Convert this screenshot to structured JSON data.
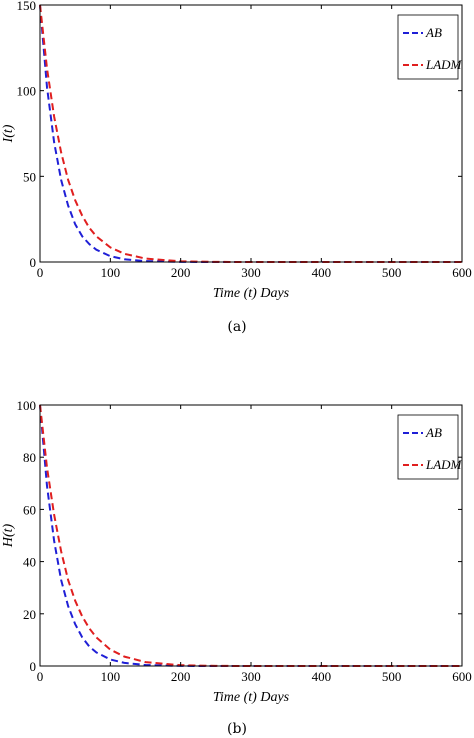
{
  "chart_data": [
    {
      "type": "line",
      "caption": "(a)",
      "xlabel": "Time (t) Days",
      "ylabel": "I(t)",
      "xlim": [
        0,
        600
      ],
      "ylim": [
        0,
        150
      ],
      "xticks": [
        0,
        100,
        200,
        300,
        400,
        500,
        600
      ],
      "yticks": [
        0,
        50,
        100,
        150
      ],
      "grid": false,
      "legend": "top-right",
      "series": [
        {
          "name": "AB",
          "color": "#1f1fd6",
          "x": [
            0,
            10,
            20,
            30,
            40,
            50,
            60,
            70,
            80,
            100,
            120,
            150,
            200,
            250,
            300,
            400,
            500,
            600
          ],
          "y": [
            150,
            102,
            70,
            48,
            33,
            22,
            15,
            10.5,
            7.2,
            3.4,
            1.6,
            0.5,
            0.05,
            0,
            0,
            0,
            0,
            0
          ]
        },
        {
          "name": "LADM",
          "color": "#e01f1f",
          "x": [
            0,
            10,
            20,
            30,
            40,
            50,
            60,
            70,
            80,
            100,
            120,
            150,
            200,
            250,
            300,
            400,
            500,
            600
          ],
          "y": [
            150,
            113,
            85,
            64,
            48,
            36,
            27,
            20,
            15,
            8.5,
            4.8,
            2.0,
            0.4,
            0.05,
            0,
            0,
            0,
            0
          ]
        }
      ]
    },
    {
      "type": "line",
      "caption": "(b)",
      "xlabel": "Time (t) Days",
      "ylabel": "H(t)",
      "xlim": [
        0,
        600
      ],
      "ylim": [
        0,
        100
      ],
      "xticks": [
        0,
        100,
        200,
        300,
        400,
        500,
        600
      ],
      "yticks": [
        0,
        20,
        40,
        60,
        80,
        100
      ],
      "grid": false,
      "legend": "top-right",
      "series": [
        {
          "name": "AB",
          "color": "#1f1fd6",
          "x": [
            0,
            10,
            20,
            30,
            40,
            50,
            60,
            70,
            80,
            100,
            120,
            150,
            200,
            250,
            300,
            400,
            500,
            600
          ],
          "y": [
            100,
            69,
            48,
            33,
            23,
            16,
            11,
            7.5,
            5.2,
            2.5,
            1.2,
            0.4,
            0.05,
            0,
            0,
            0,
            0,
            0
          ]
        },
        {
          "name": "LADM",
          "color": "#e01f1f",
          "x": [
            0,
            10,
            20,
            30,
            40,
            50,
            60,
            70,
            80,
            100,
            120,
            150,
            200,
            250,
            300,
            400,
            500,
            600
          ],
          "y": [
            100,
            76,
            58,
            44,
            33,
            25,
            19,
            14.5,
            11,
            6.3,
            3.6,
            1.5,
            0.3,
            0.05,
            0,
            0,
            0,
            0
          ]
        }
      ]
    }
  ]
}
